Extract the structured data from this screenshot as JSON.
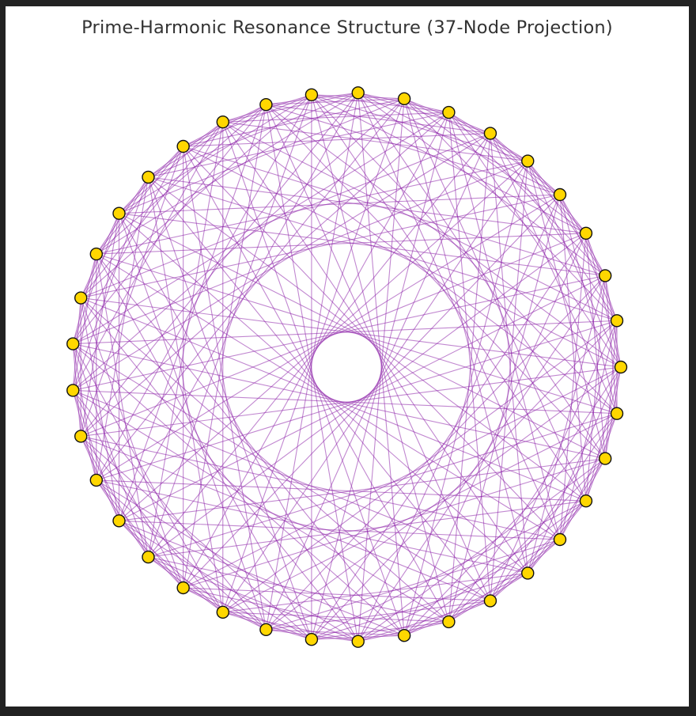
{
  "title": "Prime-Harmonic Resonance Structure (37-Node Projection)",
  "graph": {
    "node_count": 37,
    "layout": "circular",
    "edge_rule": "each node i is linked to node (i + p) mod 37 for every prime step p",
    "prime_steps": [
      2,
      3,
      5,
      7,
      11,
      13,
      17
    ],
    "colors": {
      "node_fill": "#FFD700",
      "node_stroke": "#111111",
      "edge": "#8E24AA",
      "background": "#ffffff",
      "border": "#222222"
    }
  }
}
